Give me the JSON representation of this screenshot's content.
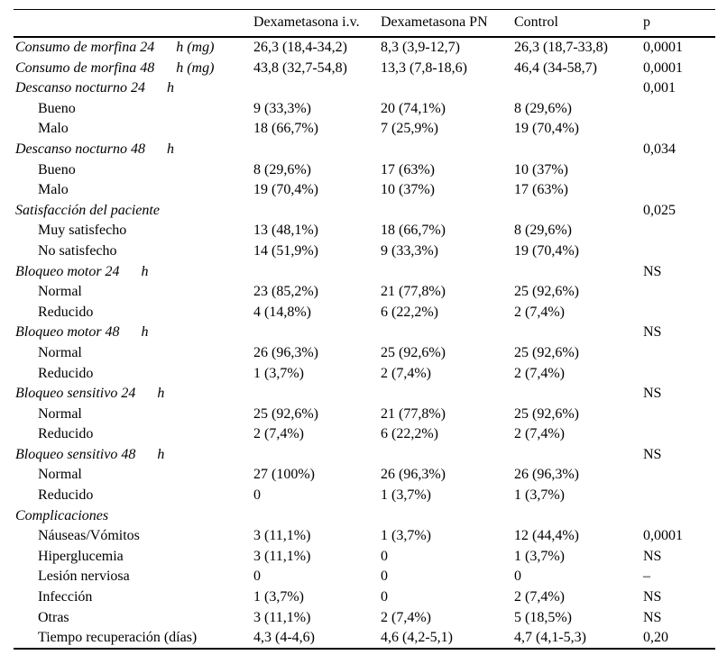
{
  "table": {
    "columns": [
      "",
      "Dexametasona i.v.",
      "Dexametasona PN",
      "Control",
      "p"
    ],
    "rows": [
      {
        "label": "Consumo de morfina 24  h (mg)",
        "style": "section",
        "values": [
          "26,3 (18,4-34,2)",
          "8,3 (3,9-12,7)",
          "26,3 (18,7-33,8)",
          "0,0001"
        ]
      },
      {
        "label": "Consumo de morfina 48  h (mg)",
        "style": "section",
        "values": [
          "43,8 (32,7-54,8)",
          "13,3 (7,8-18,6)",
          "46,4 (34-58,7)",
          "0,0001"
        ]
      },
      {
        "label": "Descanso nocturno 24  h",
        "style": "section",
        "values": [
          "",
          "",
          "",
          "0,001"
        ]
      },
      {
        "label": "Bueno",
        "style": "item",
        "values": [
          "9 (33,3%)",
          "20 (74,1%)",
          "8 (29,6%)",
          ""
        ]
      },
      {
        "label": "Malo",
        "style": "item",
        "values": [
          "18 (66,7%)",
          "7 (25,9%)",
          "19 (70,4%)",
          ""
        ]
      },
      {
        "label": "Descanso nocturno 48  h",
        "style": "section",
        "values": [
          "",
          "",
          "",
          "0,034"
        ]
      },
      {
        "label": "Bueno",
        "style": "item",
        "values": [
          "8 (29,6%)",
          "17 (63%)",
          "10 (37%)",
          ""
        ]
      },
      {
        "label": "Malo",
        "style": "item",
        "values": [
          "19 (70,4%)",
          "10 (37%)",
          "17 (63%)",
          ""
        ]
      },
      {
        "label": "Satisfacción del paciente",
        "style": "section",
        "values": [
          "",
          "",
          "",
          "0,025"
        ]
      },
      {
        "label": "Muy satisfecho",
        "style": "item",
        "values": [
          "13 (48,1%)",
          "18 (66,7%)",
          "8 (29,6%)",
          ""
        ]
      },
      {
        "label": "No satisfecho",
        "style": "item",
        "values": [
          "14 (51,9%)",
          "9 (33,3%)",
          "19 (70,4%)",
          ""
        ]
      },
      {
        "label": "Bloqueo motor 24  h",
        "style": "section",
        "values": [
          "",
          "",
          "",
          "NS"
        ]
      },
      {
        "label": "Normal",
        "style": "item",
        "values": [
          "23 (85,2%)",
          "21 (77,8%)",
          "25 (92,6%)",
          ""
        ]
      },
      {
        "label": "Reducido",
        "style": "item",
        "values": [
          "4 (14,8%)",
          "6 (22,2%)",
          "2 (7,4%)",
          ""
        ]
      },
      {
        "label": "Bloqueo motor 48  h",
        "style": "section",
        "values": [
          "",
          "",
          "",
          "NS"
        ]
      },
      {
        "label": "Normal",
        "style": "item",
        "values": [
          "26 (96,3%)",
          "25 (92,6%)",
          "25 (92,6%)",
          ""
        ]
      },
      {
        "label": "Reducido",
        "style": "item",
        "values": [
          "1 (3,7%)",
          "2 (7,4%)",
          "2 (7,4%)",
          ""
        ]
      },
      {
        "label": "Bloqueo sensitivo 24  h",
        "style": "section",
        "values": [
          "",
          "",
          "",
          "NS"
        ]
      },
      {
        "label": "Normal",
        "style": "item",
        "values": [
          "25 (92,6%)",
          "21 (77,8%)",
          "25 (92,6%)",
          ""
        ]
      },
      {
        "label": "Reducido",
        "style": "item",
        "values": [
          "2 (7,4%)",
          "6 (22,2%)",
          "2 (7,4%)",
          ""
        ]
      },
      {
        "label": "Bloqueo sensitivo 48  h",
        "style": "section",
        "values": [
          "",
          "",
          "",
          "NS"
        ]
      },
      {
        "label": "Normal",
        "style": "item",
        "values": [
          "27 (100%)",
          "26 (96,3%)",
          "26 (96,3%)",
          ""
        ]
      },
      {
        "label": "Reducido",
        "style": "item",
        "values": [
          "0",
          "1 (3,7%)",
          "1 (3,7%)",
          ""
        ]
      },
      {
        "label": "Complicaciones",
        "style": "section",
        "values": [
          "",
          "",
          "",
          ""
        ]
      },
      {
        "label": "Náuseas/Vómitos",
        "style": "item",
        "values": [
          "3 (11,1%)",
          "1 (3,7%)",
          "12 (44,4%)",
          "0,0001"
        ]
      },
      {
        "label": "Hiperglucemia",
        "style": "item",
        "values": [
          "3 (11,1%)",
          "0",
          "1 (3,7%)",
          "NS"
        ]
      },
      {
        "label": "Lesión nerviosa",
        "style": "item",
        "values": [
          "0",
          "0",
          "0",
          "–"
        ]
      },
      {
        "label": "Infección",
        "style": "item",
        "values": [
          "1 (3,7%)",
          "0",
          "2 (7,4%)",
          "NS"
        ]
      },
      {
        "label": "Otras",
        "style": "item",
        "values": [
          "3 (11,1%)",
          "2 (7,4%)",
          "5 (18,5%)",
          "NS"
        ]
      },
      {
        "label": "Tiempo recuperación (días)",
        "style": "item",
        "values": [
          "4,3 (4-4,6)",
          "4,6 (4,2-5,1)",
          "4,7 (4,1-5,3)",
          "0,20"
        ]
      }
    ]
  },
  "colors": {
    "text": "#000000",
    "background": "#ffffff",
    "border": "#000000"
  }
}
